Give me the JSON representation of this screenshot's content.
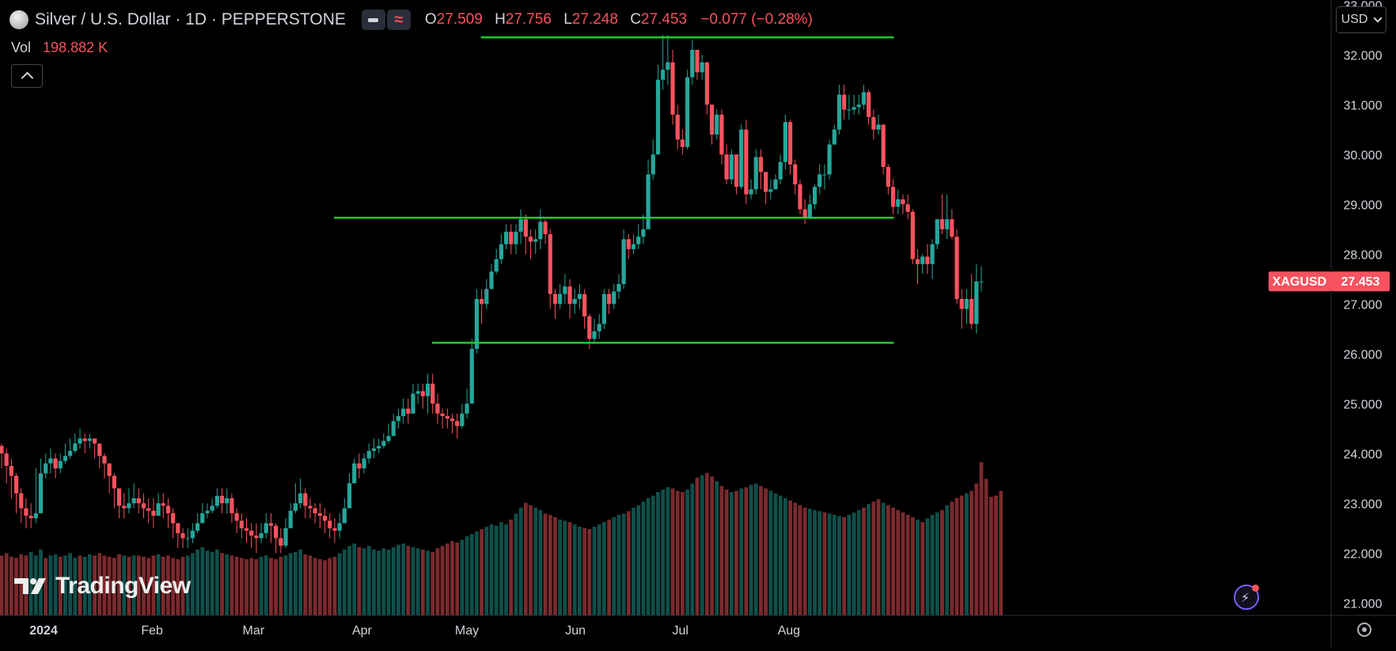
{
  "header": {
    "title": "Silver / U.S. Dollar · 1D · PEPPERSTONE",
    "ohlc": [
      {
        "key": "O",
        "value": "27.509"
      },
      {
        "key": "H",
        "value": "27.756"
      },
      {
        "key": "L",
        "value": "27.248"
      },
      {
        "key": "C",
        "value": "27.453"
      }
    ],
    "change": "−0.077 (−0.28%)",
    "icons": [
      "collapse-minus-icon",
      "indicator-wave-icon"
    ]
  },
  "volume": {
    "label": "Vol",
    "value": "198.882 K"
  },
  "currency_button": {
    "label": "USD"
  },
  "branding": {
    "logo_icon": "tradingview-logo-icon",
    "wordmark": "TradingView"
  },
  "price_tag": {
    "symbol": "XAGUSD",
    "price": "27.453"
  },
  "colors": {
    "background": "#000000",
    "up": "#26a69a",
    "down": "#f7525f",
    "volume_up": "#0f4f4a",
    "volume_down": "#7a2a2d",
    "level_lines": "#1fcb2f",
    "text": "#d1d4dc"
  },
  "chart_data": {
    "type": "candlestick",
    "symbol": "XAGUSD",
    "timeframe": "1D",
    "y_ticks": [
      21,
      22,
      23,
      24,
      25,
      26,
      27,
      28,
      29,
      30,
      31,
      32,
      33
    ],
    "y_tick_labels": [
      "21.000",
      "22.000",
      "23.000",
      "24.000",
      "25.000",
      "26.000",
      "27.000",
      "28.000",
      "29.000",
      "30.000",
      "31.000",
      "32.000",
      "33.000"
    ],
    "ylim": [
      20.75,
      33.1
    ],
    "x_labels": [
      {
        "label": "2024",
        "date": "2024-01-01"
      },
      {
        "label": "Feb",
        "date": "2024-02-01"
      },
      {
        "label": "Mar",
        "date": "2024-03-01"
      },
      {
        "label": "Apr",
        "date": "2024-04-01"
      },
      {
        "label": "May",
        "date": "2024-05-01"
      },
      {
        "label": "Jun",
        "date": "2024-06-01"
      },
      {
        "label": "Jul",
        "date": "2024-07-01"
      },
      {
        "label": "Aug",
        "date": "2024-08-01"
      }
    ],
    "closes": [
      24.0,
      23.75,
      23.55,
      23.2,
      22.9,
      22.75,
      22.7,
      22.8,
      23.6,
      23.8,
      23.9,
      23.7,
      23.85,
      23.95,
      24.05,
      24.2,
      24.3,
      24.25,
      24.3,
      24.2,
      23.95,
      23.8,
      23.55,
      23.3,
      22.95,
      22.9,
      23.0,
      23.1,
      23.0,
      22.9,
      22.85,
      22.75,
      23.0,
      22.95,
      22.8,
      22.6,
      22.4,
      22.3,
      22.3,
      22.45,
      22.6,
      22.8,
      22.85,
      22.95,
      23.15,
      23.0,
      23.1,
      22.8,
      22.65,
      22.5,
      22.45,
      22.35,
      22.3,
      22.4,
      22.6,
      22.55,
      22.3,
      22.15,
      22.5,
      22.85,
      23.0,
      23.2,
      22.95,
      22.9,
      22.8,
      22.75,
      22.65,
      22.5,
      22.45,
      22.6,
      22.9,
      23.4,
      23.8,
      23.7,
      23.9,
      24.05,
      24.1,
      24.15,
      24.25,
      24.35,
      24.65,
      24.75,
      24.9,
      24.8,
      25.2,
      25.25,
      25.15,
      25.4,
      25.0,
      24.8,
      24.75,
      24.7,
      24.65,
      24.55,
      24.8,
      25.0,
      26.1,
      27.1,
      27.0,
      27.3,
      27.65,
      27.9,
      28.2,
      28.45,
      28.2,
      28.45,
      28.7,
      28.35,
      28.25,
      28.3,
      28.65,
      28.4,
      27.2,
      27.0,
      27.2,
      27.35,
      27.0,
      27.1,
      27.2,
      26.75,
      26.3,
      26.45,
      26.6,
      27.2,
      27.0,
      27.25,
      27.4,
      28.3,
      28.1,
      28.2,
      28.35,
      28.5,
      29.6,
      30.0,
      31.5,
      31.7,
      31.85,
      30.8,
      30.3,
      30.15,
      31.55,
      32.1,
      31.65,
      31.85,
      31.0,
      30.4,
      30.8,
      30.0,
      29.5,
      30.0,
      29.35,
      30.5,
      29.2,
      29.3,
      29.95,
      29.65,
      29.25,
      29.3,
      29.5,
      29.85,
      30.65,
      29.8,
      29.4,
      28.9,
      28.75,
      29.0,
      29.35,
      29.6,
      29.6,
      30.2,
      30.5,
      31.2,
      30.9,
      30.9,
      30.95,
      31.0,
      31.25,
      30.75,
      30.5,
      30.6,
      29.75,
      29.35,
      28.95,
      29.1,
      29.0,
      28.85,
      27.9,
      27.8,
      27.95,
      27.8,
      28.2,
      28.7,
      28.5,
      28.7,
      28.35,
      27.1,
      26.9,
      27.1,
      26.6,
      27.45,
      27.453
    ],
    "highs": [
      24.2,
      24.1,
      23.9,
      23.6,
      23.3,
      23.1,
      23.0,
      23.7,
      23.9,
      24.0,
      24.1,
      24.0,
      24.0,
      24.2,
      24.3,
      24.4,
      24.5,
      24.4,
      24.4,
      24.3,
      24.2,
      24.0,
      23.8,
      23.6,
      23.2,
      23.2,
      23.3,
      23.4,
      23.3,
      23.2,
      23.1,
      23.1,
      23.2,
      23.2,
      23.1,
      22.9,
      22.6,
      22.5,
      22.5,
      22.6,
      22.8,
      23.0,
      23.0,
      23.1,
      23.3,
      23.3,
      23.3,
      23.2,
      22.9,
      22.8,
      22.7,
      22.6,
      22.6,
      22.6,
      22.8,
      22.8,
      22.6,
      22.5,
      22.7,
      23.0,
      23.4,
      23.5,
      23.3,
      23.1,
      23.0,
      23.0,
      22.9,
      22.8,
      22.7,
      22.8,
      23.1,
      23.6,
      23.9,
      24.0,
      24.0,
      24.2,
      24.3,
      24.3,
      24.4,
      24.6,
      24.8,
      24.9,
      25.1,
      25.1,
      25.4,
      25.4,
      25.4,
      25.6,
      25.6,
      25.2,
      24.9,
      24.9,
      24.8,
      24.8,
      25.0,
      25.3,
      26.3,
      27.3,
      27.3,
      27.5,
      27.8,
      28.1,
      28.4,
      28.6,
      28.6,
      28.6,
      28.9,
      28.8,
      28.5,
      28.5,
      28.9,
      28.7,
      28.5,
      27.3,
      27.4,
      27.6,
      27.5,
      27.3,
      27.4,
      27.3,
      26.8,
      26.7,
      26.8,
      27.3,
      27.3,
      27.4,
      27.6,
      28.5,
      28.4,
      28.4,
      28.6,
      28.8,
      29.9,
      30.3,
      31.8,
      32.4,
      32.4,
      32.1,
      31.0,
      30.5,
      31.7,
      32.3,
      32.1,
      32.0,
      31.8,
      31.0,
      30.9,
      30.9,
      30.2,
      30.1,
      30.0,
      30.6,
      30.7,
      29.5,
      30.1,
      30.1,
      29.6,
      29.5,
      29.6,
      30.0,
      30.8,
      30.7,
      29.9,
      29.5,
      29.1,
      29.2,
      29.4,
      29.8,
      29.8,
      30.3,
      30.6,
      31.4,
      31.4,
      31.2,
      31.2,
      31.2,
      31.4,
      31.3,
      30.9,
      30.8,
      30.6,
      29.8,
      29.5,
      29.3,
      29.2,
      29.2,
      28.9,
      28.1,
      28.0,
      28.2,
      28.3,
      28.7,
      29.2,
      29.2,
      28.9,
      28.5,
      27.3,
      27.3,
      27.6,
      27.8,
      27.756
    ],
    "lows": [
      23.7,
      23.4,
      23.1,
      22.8,
      22.6,
      22.5,
      22.5,
      22.6,
      23.4,
      23.5,
      23.6,
      23.5,
      23.6,
      23.8,
      23.9,
      24.0,
      24.1,
      24.0,
      24.1,
      23.9,
      23.7,
      23.5,
      23.2,
      22.9,
      22.7,
      22.7,
      22.8,
      22.9,
      22.8,
      22.7,
      22.6,
      22.5,
      22.8,
      22.7,
      22.5,
      22.3,
      22.1,
      22.1,
      22.1,
      22.2,
      22.4,
      22.6,
      22.7,
      22.8,
      22.9,
      22.8,
      22.8,
      22.6,
      22.4,
      22.3,
      22.2,
      22.1,
      22.0,
      22.2,
      22.3,
      22.2,
      22.0,
      22.0,
      22.1,
      22.5,
      22.8,
      22.9,
      22.7,
      22.7,
      22.6,
      22.5,
      22.4,
      22.3,
      22.2,
      22.3,
      22.6,
      23.1,
      23.5,
      23.5,
      23.6,
      23.8,
      23.9,
      24.0,
      24.1,
      24.2,
      24.4,
      24.5,
      24.6,
      24.6,
      25.0,
      25.0,
      24.9,
      24.8,
      24.8,
      24.6,
      24.5,
      24.5,
      24.4,
      24.3,
      24.5,
      24.7,
      25.1,
      26.0,
      26.6,
      26.9,
      27.3,
      27.6,
      27.8,
      28.1,
      28.0,
      28.0,
      28.2,
      28.0,
      27.9,
      28.0,
      28.1,
      28.2,
      26.9,
      26.7,
      26.9,
      27.0,
      26.7,
      26.8,
      26.9,
      26.5,
      26.1,
      26.2,
      26.3,
      26.5,
      26.8,
      26.9,
      27.1,
      27.3,
      27.9,
      28.0,
      28.1,
      28.2,
      28.5,
      29.5,
      30.0,
      31.3,
      31.4,
      30.6,
      30.1,
      30.0,
      30.1,
      31.4,
      31.5,
      31.5,
      30.8,
      30.2,
      30.3,
      29.8,
      29.4,
      29.4,
      29.2,
      29.3,
      29.0,
      29.1,
      29.2,
      29.3,
      29.0,
      29.1,
      29.3,
      29.4,
      29.7,
      29.6,
      29.2,
      28.8,
      28.6,
      28.7,
      28.9,
      29.2,
      29.3,
      29.5,
      30.2,
      30.4,
      30.7,
      30.7,
      30.8,
      30.8,
      30.9,
      30.6,
      30.3,
      30.4,
      29.6,
      29.2,
      28.8,
      28.8,
      28.8,
      28.7,
      27.8,
      27.4,
      27.6,
      27.6,
      27.5,
      28.1,
      28.4,
      28.3,
      28.3,
      27.0,
      26.5,
      26.6,
      26.5,
      26.4,
      27.248
    ],
    "volume_ylim": [
      0,
      140
    ],
    "volumes": [
      50,
      52,
      49,
      48,
      51,
      50,
      53,
      50,
      55,
      48,
      50,
      51,
      49,
      50,
      52,
      48,
      50,
      49,
      51,
      50,
      52,
      50,
      49,
      48,
      51,
      50,
      49,
      50,
      50,
      49,
      48,
      50,
      51,
      49,
      50,
      48,
      47,
      49,
      50,
      52,
      55,
      57,
      54,
      53,
      55,
      52,
      51,
      50,
      49,
      48,
      47,
      48,
      47,
      49,
      50,
      48,
      47,
      49,
      50,
      52,
      53,
      55,
      51,
      50,
      48,
      47,
      46,
      48,
      49,
      52,
      55,
      58,
      60,
      57,
      56,
      58,
      55,
      54,
      56,
      55,
      57,
      59,
      60,
      58,
      57,
      56,
      55,
      54,
      53,
      56,
      58,
      60,
      62,
      61,
      63,
      66,
      68,
      70,
      72,
      74,
      76,
      75,
      78,
      76,
      80,
      85,
      90,
      94,
      92,
      90,
      88,
      85,
      84,
      82,
      80,
      79,
      78,
      76,
      74,
      73,
      72,
      74,
      76,
      78,
      80,
      82,
      84,
      85,
      87,
      90,
      92,
      95,
      98,
      100,
      103,
      105,
      107,
      106,
      104,
      103,
      105,
      110,
      115,
      117,
      119,
      116,
      112,
      108,
      105,
      103,
      104,
      106,
      107,
      109,
      110,
      108,
      106,
      104,
      102,
      100,
      98,
      96,
      94,
      92,
      90,
      89,
      88,
      87,
      86,
      85,
      84,
      83,
      82,
      84,
      86,
      88,
      90,
      93,
      95,
      97,
      94,
      92,
      90,
      88,
      86,
      84,
      82,
      80,
      78,
      81,
      84,
      86,
      88,
      92,
      95,
      98,
      100,
      102,
      104,
      110,
      128,
      114,
      99,
      100,
      104
    ],
    "volume_up": [
      false,
      false,
      false,
      false,
      false,
      false,
      true,
      true,
      true,
      false,
      true,
      true,
      false,
      true,
      true,
      true,
      false,
      true,
      true,
      false,
      false,
      false,
      false,
      false,
      false,
      true,
      false,
      true,
      false,
      false,
      false,
      false,
      true,
      false,
      false,
      false,
      false,
      false,
      true,
      true,
      true,
      true,
      true,
      true,
      true,
      false,
      true,
      false,
      false,
      false,
      false,
      false,
      false,
      true,
      true,
      false,
      false,
      false,
      true,
      true,
      true,
      true,
      false,
      false,
      false,
      false,
      false,
      false,
      false,
      true,
      true,
      true,
      true,
      false,
      true,
      true,
      true,
      true,
      true,
      true,
      true,
      true,
      true,
      false,
      true,
      true,
      false,
      true,
      false,
      false,
      false,
      false,
      false,
      false,
      true,
      true,
      true,
      true,
      false,
      true,
      true,
      true,
      true,
      true,
      false,
      true,
      true,
      false,
      false,
      true,
      true,
      false,
      false,
      false,
      true,
      true,
      false,
      true,
      true,
      false,
      false,
      true,
      true,
      true,
      false,
      true,
      true,
      true,
      false,
      true,
      true,
      true,
      true,
      true,
      true,
      true,
      true,
      false,
      false,
      false,
      true,
      true,
      false,
      true,
      false,
      false,
      true,
      false,
      false,
      true,
      false,
      true,
      false,
      true,
      true,
      false,
      false,
      true,
      true,
      true,
      true,
      false,
      false,
      false,
      false,
      true,
      true,
      true,
      false,
      true,
      true,
      true,
      false,
      true,
      true,
      true,
      false,
      true,
      false,
      false,
      true,
      false,
      false,
      false,
      false,
      false,
      false,
      true,
      false,
      true,
      true,
      true,
      false,
      true,
      false,
      false,
      false,
      true,
      false,
      false
    ],
    "level_lines": [
      {
        "value": 32.35,
        "start": "2024-05-05",
        "end": "2024-08-31"
      },
      {
        "value": 28.73,
        "start": "2024-03-24",
        "end": "2024-08-31"
      },
      {
        "value": 26.22,
        "start": "2024-04-21",
        "end": "2024-08-31"
      }
    ],
    "last_price": 27.453
  }
}
